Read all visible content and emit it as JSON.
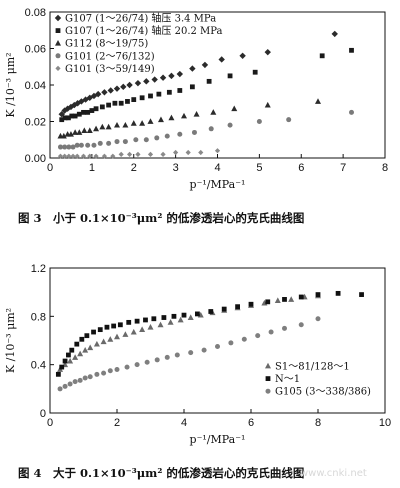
{
  "chart_data": [
    {
      "type": "scatter",
      "xlabel": "p⁻¹/MPa⁻¹",
      "ylabel": "K /10⁻³ μm²",
      "xlim": [
        0,
        8
      ],
      "ylim": [
        0,
        0.08
      ],
      "xticks": [
        "0",
        "1",
        "2",
        "3",
        "4",
        "5",
        "6",
        "7",
        "8"
      ],
      "yticks": [
        "0.00",
        "0.02",
        "0.04",
        "0.06",
        "0.08"
      ],
      "grid": false,
      "legend_position": "top-left",
      "caption": "图 3　小于 0.1×10⁻³μm² 的低渗透岩心的克氏曲线图",
      "series": [
        {
          "name": "G107 (1～26/74) 轴压 3.4 MPa",
          "marker": "diamond",
          "color": "#2b2b2b",
          "points": [
            [
              0.28,
              0.024
            ],
            [
              0.35,
              0.026
            ],
            [
              0.42,
              0.027
            ],
            [
              0.5,
              0.028
            ],
            [
              0.58,
              0.029
            ],
            [
              0.66,
              0.03
            ],
            [
              0.75,
              0.031
            ],
            [
              0.85,
              0.032
            ],
            [
              0.95,
              0.033
            ],
            [
              1.05,
              0.034
            ],
            [
              1.15,
              0.035
            ],
            [
              1.3,
              0.036
            ],
            [
              1.45,
              0.037
            ],
            [
              1.6,
              0.038
            ],
            [
              1.75,
              0.039
            ],
            [
              1.9,
              0.04
            ],
            [
              2.1,
              0.041
            ],
            [
              2.3,
              0.042
            ],
            [
              2.5,
              0.043
            ],
            [
              2.7,
              0.044
            ],
            [
              2.9,
              0.045
            ],
            [
              3.1,
              0.046
            ],
            [
              3.4,
              0.049
            ],
            [
              3.7,
              0.051
            ],
            [
              4.1,
              0.054
            ],
            [
              4.6,
              0.056
            ],
            [
              5.2,
              0.058
            ],
            [
              6.8,
              0.068
            ]
          ]
        },
        {
          "name": "G107 (1～26/74) 轴压 20.2 MPa",
          "marker": "square",
          "color": "#1a1a1a",
          "points": [
            [
              0.28,
              0.021
            ],
            [
              0.36,
              0.022
            ],
            [
              0.44,
              0.022
            ],
            [
              0.52,
              0.023
            ],
            [
              0.6,
              0.023
            ],
            [
              0.7,
              0.024
            ],
            [
              0.8,
              0.025
            ],
            [
              0.9,
              0.025
            ],
            [
              1.0,
              0.026
            ],
            [
              1.1,
              0.027
            ],
            [
              1.25,
              0.028
            ],
            [
              1.4,
              0.029
            ],
            [
              1.55,
              0.03
            ],
            [
              1.7,
              0.03
            ],
            [
              1.85,
              0.031
            ],
            [
              2.0,
              0.032
            ],
            [
              2.2,
              0.033
            ],
            [
              2.4,
              0.034
            ],
            [
              2.6,
              0.035
            ],
            [
              2.85,
              0.036
            ],
            [
              3.1,
              0.037
            ],
            [
              3.4,
              0.039
            ],
            [
              3.8,
              0.042
            ],
            [
              4.3,
              0.045
            ],
            [
              4.9,
              0.047
            ],
            [
              6.5,
              0.056
            ],
            [
              7.2,
              0.059
            ]
          ]
        },
        {
          "name": "G112 (8～19/75)",
          "marker": "triangle",
          "color": "#2b2b2b",
          "points": [
            [
              0.25,
              0.012
            ],
            [
              0.33,
              0.012
            ],
            [
              0.42,
              0.013
            ],
            [
              0.5,
              0.013
            ],
            [
              0.6,
              0.014
            ],
            [
              0.7,
              0.014
            ],
            [
              0.82,
              0.015
            ],
            [
              0.95,
              0.015
            ],
            [
              1.1,
              0.016
            ],
            [
              1.25,
              0.017
            ],
            [
              1.4,
              0.017
            ],
            [
              1.6,
              0.018
            ],
            [
              1.8,
              0.018
            ],
            [
              2.0,
              0.019
            ],
            [
              2.2,
              0.019
            ],
            [
              2.4,
              0.02
            ],
            [
              2.65,
              0.021
            ],
            [
              2.9,
              0.022
            ],
            [
              3.2,
              0.023
            ],
            [
              3.5,
              0.024
            ],
            [
              3.9,
              0.025
            ],
            [
              4.4,
              0.027
            ],
            [
              5.2,
              0.029
            ],
            [
              6.4,
              0.031
            ]
          ]
        },
        {
          "name": "G101 (2～76/132)",
          "marker": "circle",
          "color": "#7a7a7a",
          "points": [
            [
              0.25,
              0.006
            ],
            [
              0.35,
              0.006
            ],
            [
              0.45,
              0.006
            ],
            [
              0.55,
              0.006
            ],
            [
              0.65,
              0.007
            ],
            [
              0.75,
              0.007
            ],
            [
              0.9,
              0.007
            ],
            [
              1.05,
              0.007
            ],
            [
              1.2,
              0.008
            ],
            [
              1.4,
              0.008
            ],
            [
              1.6,
              0.009
            ],
            [
              1.8,
              0.009
            ],
            [
              2.05,
              0.01
            ],
            [
              2.3,
              0.01
            ],
            [
              2.55,
              0.011
            ],
            [
              2.8,
              0.012
            ],
            [
              3.1,
              0.013
            ],
            [
              3.45,
              0.014
            ],
            [
              3.85,
              0.016
            ],
            [
              4.3,
              0.018
            ],
            [
              5.0,
              0.02
            ],
            [
              5.7,
              0.021
            ],
            [
              7.2,
              0.025
            ]
          ]
        },
        {
          "name": "G101 (3～59/149)",
          "marker": "diamond-small",
          "color": "#8a8a8a",
          "points": [
            [
              0.25,
              0.001
            ],
            [
              0.35,
              0.001
            ],
            [
              0.45,
              0.001
            ],
            [
              0.55,
              0.001
            ],
            [
              0.65,
              0.001
            ],
            [
              0.8,
              0.001
            ],
            [
              0.95,
              0.001
            ],
            [
              1.1,
              0.001
            ],
            [
              1.3,
              0.001
            ],
            [
              1.5,
              0.001
            ],
            [
              1.7,
              0.002
            ],
            [
              1.9,
              0.002
            ],
            [
              2.1,
              0.002
            ],
            [
              2.4,
              0.002
            ],
            [
              2.7,
              0.002
            ],
            [
              3.0,
              0.003
            ],
            [
              3.3,
              0.003
            ],
            [
              3.6,
              0.003
            ],
            [
              4.0,
              0.004
            ]
          ]
        }
      ]
    },
    {
      "type": "scatter",
      "xlabel": "p⁻¹/MPa⁻¹",
      "ylabel": "K /10⁻³ μm²",
      "xlim": [
        0,
        10
      ],
      "ylim": [
        0,
        1.2
      ],
      "xticks": [
        "0",
        "2",
        "4",
        "6",
        "8",
        "10"
      ],
      "yticks": [
        "0",
        "0.4",
        "0.8",
        "1.2"
      ],
      "grid": false,
      "legend_position": "bottom-right",
      "caption": "图 4　大于 0.1×10⁻³μm² 的低渗透岩心的克氏曲线图",
      "series": [
        {
          "name": "S1～81/128～1",
          "marker": "triangle",
          "color": "#6a6a6a",
          "points": [
            [
              0.3,
              0.36
            ],
            [
              0.45,
              0.4
            ],
            [
              0.6,
              0.43
            ],
            [
              0.75,
              0.46
            ],
            [
              0.9,
              0.49
            ],
            [
              1.05,
              0.52
            ],
            [
              1.2,
              0.54
            ],
            [
              1.4,
              0.57
            ],
            [
              1.6,
              0.59
            ],
            [
              1.8,
              0.61
            ],
            [
              2.0,
              0.63
            ],
            [
              2.25,
              0.65
            ],
            [
              2.5,
              0.67
            ],
            [
              2.75,
              0.69
            ],
            [
              3.0,
              0.71
            ],
            [
              3.3,
              0.73
            ],
            [
              3.6,
              0.75
            ],
            [
              3.9,
              0.77
            ],
            [
              4.2,
              0.79
            ],
            [
              4.5,
              0.81
            ],
            [
              4.85,
              0.83
            ],
            [
              5.2,
              0.85
            ],
            [
              5.6,
              0.87
            ],
            [
              6.0,
              0.89
            ],
            [
              6.4,
              0.91
            ],
            [
              6.8,
              0.93
            ],
            [
              7.2,
              0.94
            ],
            [
              7.6,
              0.96
            ],
            [
              8.0,
              0.97
            ]
          ]
        },
        {
          "name": "N～1",
          "marker": "square",
          "color": "#111111",
          "points": [
            [
              0.25,
              0.32
            ],
            [
              0.35,
              0.38
            ],
            [
              0.45,
              0.43
            ],
            [
              0.55,
              0.48
            ],
            [
              0.65,
              0.52
            ],
            [
              0.8,
              0.57
            ],
            [
              0.95,
              0.61
            ],
            [
              1.1,
              0.64
            ],
            [
              1.3,
              0.67
            ],
            [
              1.5,
              0.69
            ],
            [
              1.7,
              0.71
            ],
            [
              1.9,
              0.72
            ],
            [
              2.1,
              0.73
            ],
            [
              2.35,
              0.75
            ],
            [
              2.6,
              0.76
            ],
            [
              2.85,
              0.77
            ],
            [
              3.1,
              0.78
            ],
            [
              3.4,
              0.79
            ],
            [
              3.7,
              0.8
            ],
            [
              4.0,
              0.81
            ],
            [
              4.4,
              0.82
            ],
            [
              4.8,
              0.84
            ],
            [
              5.2,
              0.86
            ],
            [
              5.6,
              0.88
            ],
            [
              6.0,
              0.9
            ],
            [
              6.5,
              0.92
            ],
            [
              7.0,
              0.94
            ],
            [
              7.5,
              0.96
            ],
            [
              8.0,
              0.98
            ],
            [
              8.6,
              0.99
            ],
            [
              9.3,
              0.98
            ]
          ]
        },
        {
          "name": "G105 (3～338/386)",
          "marker": "circle",
          "color": "#7f7f7f",
          "points": [
            [
              0.3,
              0.2
            ],
            [
              0.45,
              0.22
            ],
            [
              0.6,
              0.24
            ],
            [
              0.75,
              0.26
            ],
            [
              0.9,
              0.27
            ],
            [
              1.05,
              0.29
            ],
            [
              1.2,
              0.3
            ],
            [
              1.4,
              0.32
            ],
            [
              1.6,
              0.33
            ],
            [
              1.8,
              0.35
            ],
            [
              2.0,
              0.36
            ],
            [
              2.3,
              0.38
            ],
            [
              2.6,
              0.4
            ],
            [
              2.9,
              0.42
            ],
            [
              3.2,
              0.44
            ],
            [
              3.5,
              0.46
            ],
            [
              3.8,
              0.48
            ],
            [
              4.2,
              0.5
            ],
            [
              4.6,
              0.52
            ],
            [
              5.0,
              0.55
            ],
            [
              5.4,
              0.58
            ],
            [
              5.8,
              0.61
            ],
            [
              6.2,
              0.64
            ],
            [
              6.6,
              0.67
            ],
            [
              7.0,
              0.7
            ],
            [
              7.5,
              0.73
            ],
            [
              8.0,
              0.78
            ]
          ]
        }
      ]
    }
  ],
  "watermark": "www.cnki.net"
}
